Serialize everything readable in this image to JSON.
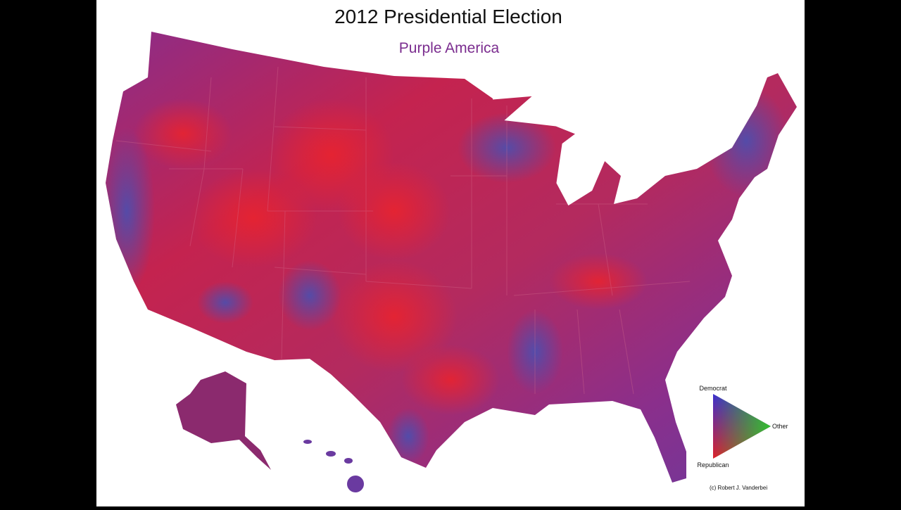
{
  "header": {
    "title": "2012 Presidential Election",
    "subtitle": "Purple America"
  },
  "legend": {
    "top": "Democrat",
    "right": "Other",
    "bottom": "Republican"
  },
  "credit": "(c) Robert J. Vanderbei"
}
